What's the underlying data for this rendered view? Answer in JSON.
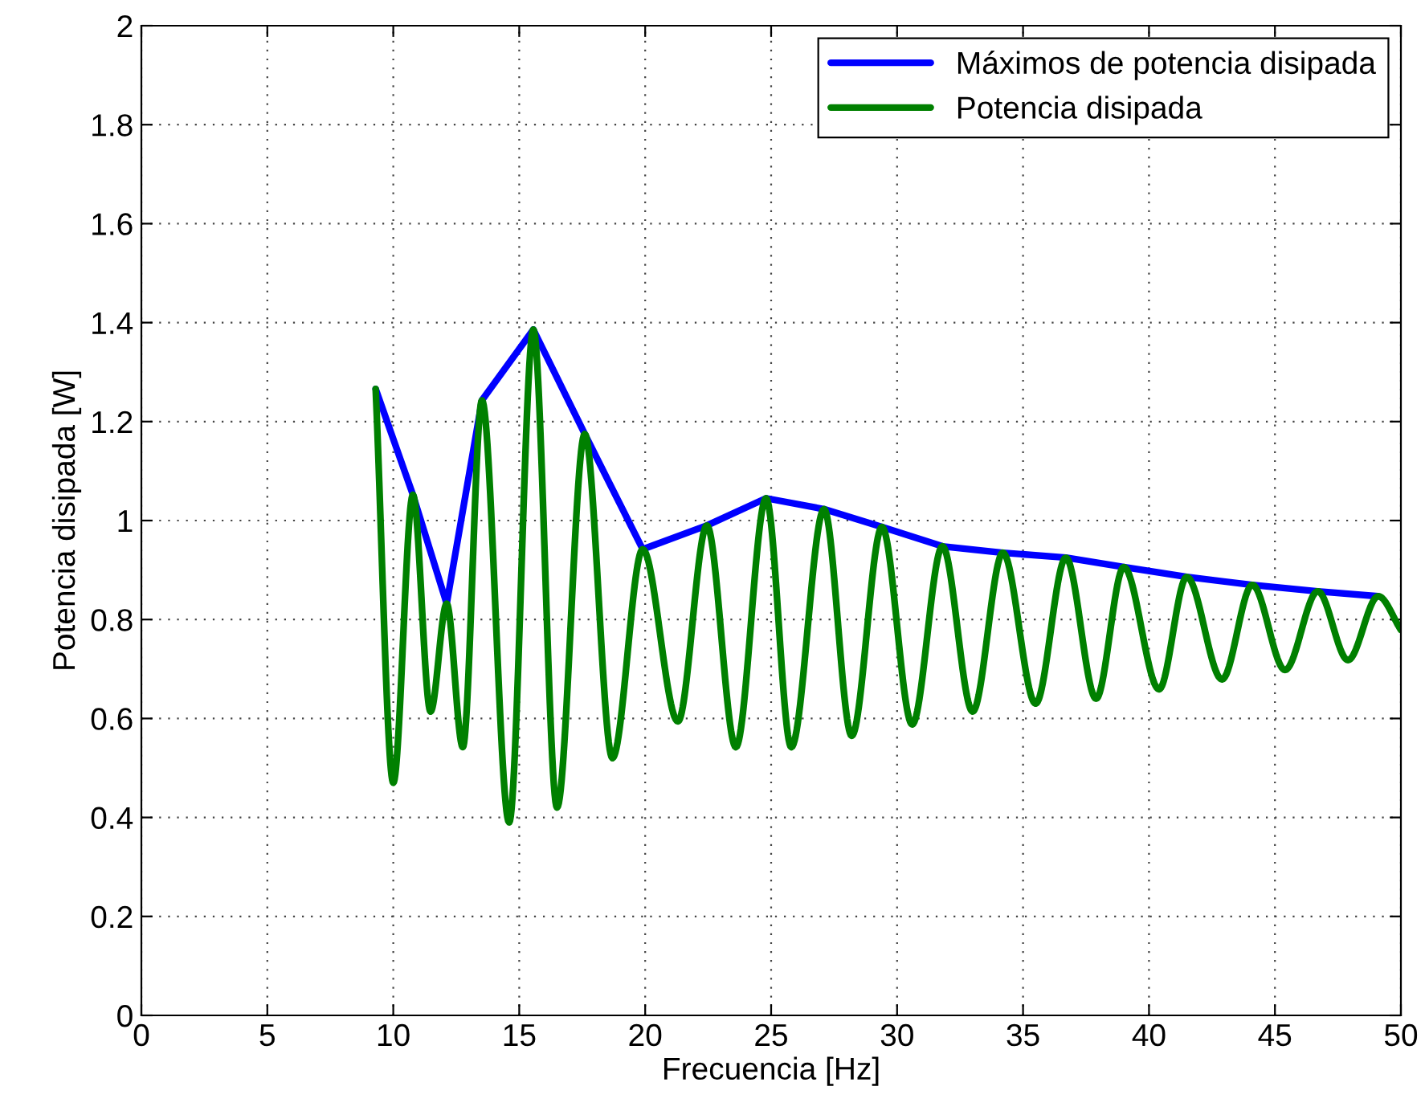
{
  "chart_data": {
    "type": "line",
    "xlabel": "Frecuencia [Hz]",
    "ylabel": "Potencia disipada [W]",
    "xlim": [
      0,
      50
    ],
    "xticks": [
      0,
      5,
      10,
      15,
      20,
      25,
      30,
      35,
      40,
      45,
      50
    ],
    "ylim": [
      0,
      2
    ],
    "yticks": [
      0,
      0.2,
      0.4,
      0.6,
      0.8,
      1,
      1.2,
      1.4,
      1.6,
      1.8,
      2
    ],
    "grid": true,
    "legend": "top right",
    "line_style": "solid",
    "marker": "none",
    "series": [
      {
        "name": "Máximos de potencia disipada",
        "color": "#0000ff",
        "x": [
          9.3,
          10.78,
          12.12,
          13.52,
          15.56,
          17.6,
          19.9,
          22.45,
          24.8,
          27.1,
          29.4,
          31.8,
          34.2,
          36.7,
          39.0,
          41.5,
          44.1,
          46.7,
          49.1
        ],
        "values": [
          1.266,
          1.052,
          0.832,
          1.243,
          1.386,
          1.175,
          0.942,
          0.99,
          1.045,
          1.023,
          0.987,
          0.948,
          0.935,
          0.925,
          0.906,
          0.886,
          0.87,
          0.857,
          0.847
        ]
      },
      {
        "name": "Potencia disipada",
        "color": "#008000",
        "x": [
          9.3,
          10.0,
          10.78,
          11.48,
          12.12,
          12.76,
          13.52,
          14.6,
          15.56,
          16.5,
          17.6,
          18.7,
          19.9,
          21.3,
          22.45,
          23.6,
          24.8,
          25.8,
          27.1,
          28.2,
          29.4,
          30.6,
          31.8,
          33.0,
          34.2,
          35.5,
          36.7,
          37.9,
          39.0,
          40.4,
          41.5,
          42.9,
          44.1,
          45.4,
          46.7,
          47.9,
          49.1,
          50.0
        ],
        "values": [
          1.266,
          0.47,
          1.052,
          0.614,
          0.832,
          0.542,
          1.243,
          0.39,
          1.386,
          0.42,
          1.175,
          0.52,
          0.942,
          0.594,
          0.99,
          0.542,
          1.045,
          0.542,
          1.023,
          0.565,
          0.987,
          0.588,
          0.948,
          0.614,
          0.935,
          0.63,
          0.925,
          0.64,
          0.906,
          0.659,
          0.886,
          0.679,
          0.87,
          0.698,
          0.857,
          0.718,
          0.847,
          0.779
        ]
      }
    ]
  }
}
